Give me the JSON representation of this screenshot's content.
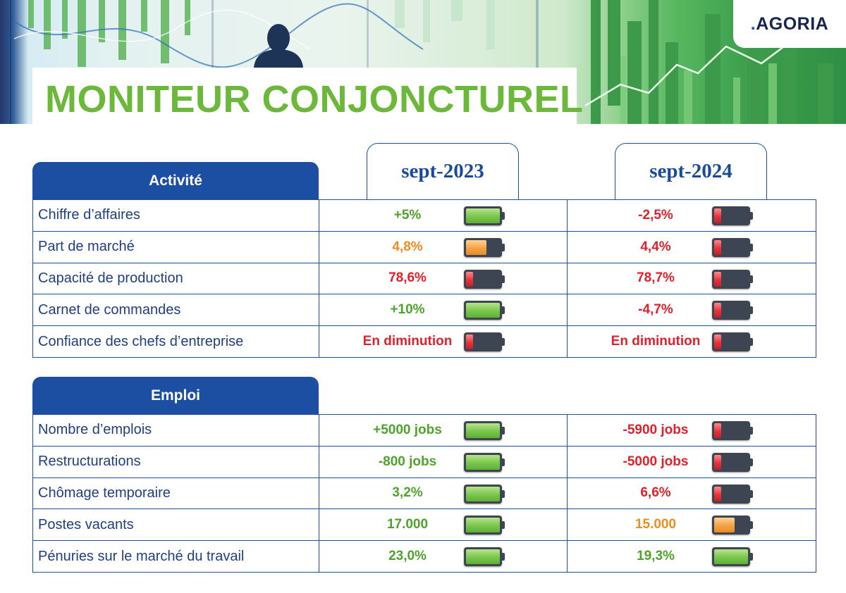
{
  "brand": {
    "logo": ".AGORIA",
    "logo_dot": ".",
    "logo_word": "AGORIA",
    "accent": "#6cb83a",
    "primary": "#1c4fa2"
  },
  "title": "MONITEUR CONJONCTUREL",
  "periods": [
    "sept-2023",
    "sept-2024"
  ],
  "sections": [
    {
      "heading": "Activité",
      "rows": [
        {
          "label": "Chiffre d’affaires",
          "v2023": {
            "text": "+5%",
            "status": "green",
            "level": 1.0
          },
          "v2024": {
            "text": "-2,5%",
            "status": "red",
            "level": 0.2
          }
        },
        {
          "label": "Part de marché",
          "v2023": {
            "text": "4,8%",
            "status": "orange",
            "level": 0.6
          },
          "v2024": {
            "text": "4,4%",
            "status": "red",
            "level": 0.2
          }
        },
        {
          "label": "Capacité de production",
          "v2023": {
            "text": "78,6%",
            "status": "red",
            "level": 0.2
          },
          "v2024": {
            "text": "78,7%",
            "status": "red",
            "level": 0.2
          }
        },
        {
          "label": "Carnet de commandes",
          "v2023": {
            "text": "+10%",
            "status": "green",
            "level": 1.0
          },
          "v2024": {
            "text": "-4,7%",
            "status": "red",
            "level": 0.2
          }
        },
        {
          "label": "Confiance des chefs d’entreprise",
          "v2023": {
            "text": "En diminution",
            "status": "red",
            "level": 0.2
          },
          "v2024": {
            "text": "En diminution",
            "status": "red",
            "level": 0.2
          }
        }
      ]
    },
    {
      "heading": "Emploi",
      "rows": [
        {
          "label": "Nombre d’emplois",
          "v2023": {
            "text": "+5000 jobs",
            "status": "green",
            "level": 1.0
          },
          "v2024": {
            "text": "-5900 jobs",
            "status": "red",
            "level": 0.2
          }
        },
        {
          "label": "Restructurations",
          "v2023": {
            "text": "-800 jobs",
            "status": "green",
            "level": 1.0
          },
          "v2024": {
            "text": "-5000 jobs",
            "status": "red",
            "level": 0.2
          }
        },
        {
          "label": "Chômage temporaire",
          "v2023": {
            "text": "3,2%",
            "status": "green",
            "level": 1.0
          },
          "v2024": {
            "text": "6,6%",
            "status": "red",
            "level": 0.2
          }
        },
        {
          "label": "Postes vacants",
          "v2023": {
            "text": "17.000",
            "status": "green",
            "level": 1.0
          },
          "v2024": {
            "text": "15.000",
            "status": "orange",
            "level": 0.6
          }
        },
        {
          "label": "Pénuries sur le marché du travail",
          "v2023": {
            "text": "23,0%",
            "status": "green",
            "level": 1.0
          },
          "v2024": {
            "text": "19,3%",
            "status": "green",
            "level": 1.0
          }
        }
      ]
    }
  ]
}
